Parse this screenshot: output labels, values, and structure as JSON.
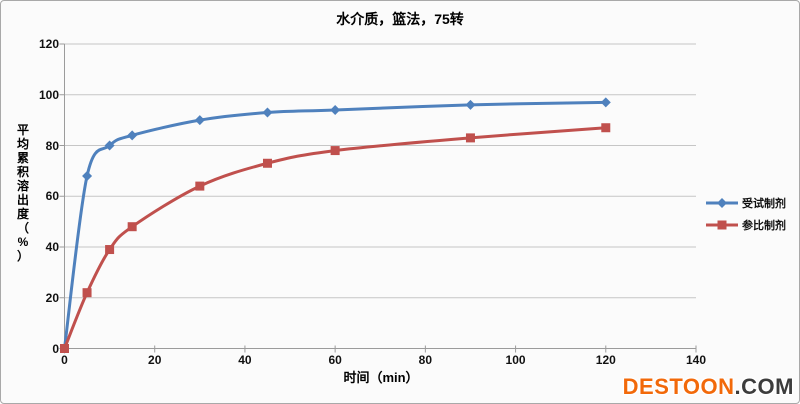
{
  "watermark": {
    "brand": "DESTOON",
    "suffix": ".COM",
    "brand_color": "#f2690a",
    "suffix_color": "#3c3c3c"
  },
  "chart_data": {
    "type": "line",
    "title": "水介质，篮法，75转",
    "xlabel": "时间（min）",
    "ylabel": "平均累积溶出度（%）",
    "x": [
      0,
      5,
      10,
      15,
      30,
      45,
      60,
      90,
      120
    ],
    "series": [
      {
        "name": "受试制剂",
        "marker": "diamond",
        "color": "#4F81BD",
        "values": [
          0,
          68,
          80,
          84,
          90,
          93,
          94,
          96,
          97
        ]
      },
      {
        "name": "参比制剂",
        "marker": "square",
        "color": "#C0504D",
        "values": [
          0,
          22,
          39,
          48,
          64,
          73,
          78,
          83,
          87
        ]
      }
    ],
    "xlim": [
      0,
      140
    ],
    "ylim": [
      0,
      120
    ],
    "x_ticks": [
      0,
      20,
      40,
      60,
      80,
      100,
      120,
      140
    ],
    "y_ticks": [
      0,
      20,
      40,
      60,
      80,
      100,
      120
    ],
    "grid": "horizontal",
    "grid_color": "#c6c6c6",
    "axis_color": "#9b9b9b",
    "legend_position": "right"
  }
}
